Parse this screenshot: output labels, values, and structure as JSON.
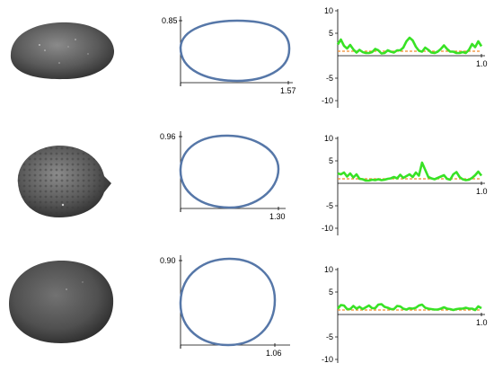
{
  "rows": [
    {
      "outline": {
        "height_label": "0.85",
        "width_label": "1.57"
      },
      "profile": {
        "y_ticks": [
          "10",
          "5",
          "-5",
          "-10"
        ],
        "x_end": "1.0",
        "baseline": 1.0,
        "values": [
          2.5,
          3.6,
          2.2,
          1.6,
          2.4,
          1.4,
          0.7,
          1.3,
          0.8,
          0.6,
          0.6,
          0.8,
          1.5,
          1.2,
          0.5,
          0.6,
          1.2,
          0.9,
          0.7,
          1.2,
          1.2,
          1.8,
          3.2,
          4.0,
          3.4,
          2.0,
          1.1,
          0.9,
          1.8,
          1.3,
          0.7,
          0.6,
          0.9,
          1.5,
          2.3,
          1.5,
          0.9,
          0.9,
          0.6,
          0.6,
          0.8,
          0.6,
          1.3,
          2.6,
          1.9,
          3.2,
          2.1
        ]
      }
    },
    {
      "outline": {
        "height_label": "0.96",
        "width_label": "1.30"
      },
      "profile": {
        "y_ticks": [
          "10",
          "5",
          "-5",
          "-10"
        ],
        "x_end": "1.0",
        "baseline": 1.0,
        "values": [
          2.2,
          2.0,
          2.4,
          1.5,
          2.2,
          1.3,
          2.0,
          1.0,
          0.9,
          0.6,
          0.6,
          0.8,
          0.7,
          0.9,
          0.7,
          0.8,
          1.0,
          1.1,
          1.4,
          1.1,
          1.9,
          1.2,
          1.6,
          2.0,
          1.4,
          2.4,
          1.7,
          4.6,
          3.0,
          1.4,
          1.1,
          0.9,
          1.2,
          1.5,
          1.8,
          1.0,
          0.8,
          2.0,
          2.5,
          1.4,
          0.9,
          0.7,
          0.8,
          1.2,
          1.8,
          2.6,
          1.7
        ]
      }
    },
    {
      "outline": {
        "height_label": "0.90",
        "width_label": "1.06"
      },
      "profile": {
        "y_ticks": [
          "10",
          "5",
          "-5",
          "-10"
        ],
        "x_end": "1.0",
        "baseline": 1.0,
        "values": [
          1.3,
          2.1,
          2.0,
          1.2,
          1.2,
          1.9,
          1.3,
          1.7,
          1.2,
          1.6,
          2.0,
          1.4,
          1.4,
          2.2,
          2.3,
          1.7,
          1.5,
          1.2,
          1.2,
          1.9,
          1.8,
          1.3,
          1.1,
          1.4,
          1.3,
          1.5,
          2.0,
          2.2,
          1.5,
          1.3,
          1.2,
          1.1,
          1.1,
          1.3,
          1.6,
          1.3,
          1.2,
          1.0,
          1.2,
          1.3,
          1.3,
          1.5,
          1.3,
          1.3,
          1.0,
          1.8,
          1.4
        ]
      }
    }
  ],
  "colors": {
    "outline_stroke": "#5677a8",
    "profile_line": "#38e225",
    "baseline_dash": "#f08a2a",
    "axis": "#000000",
    "seed_fill": "#4d4d4d"
  }
}
